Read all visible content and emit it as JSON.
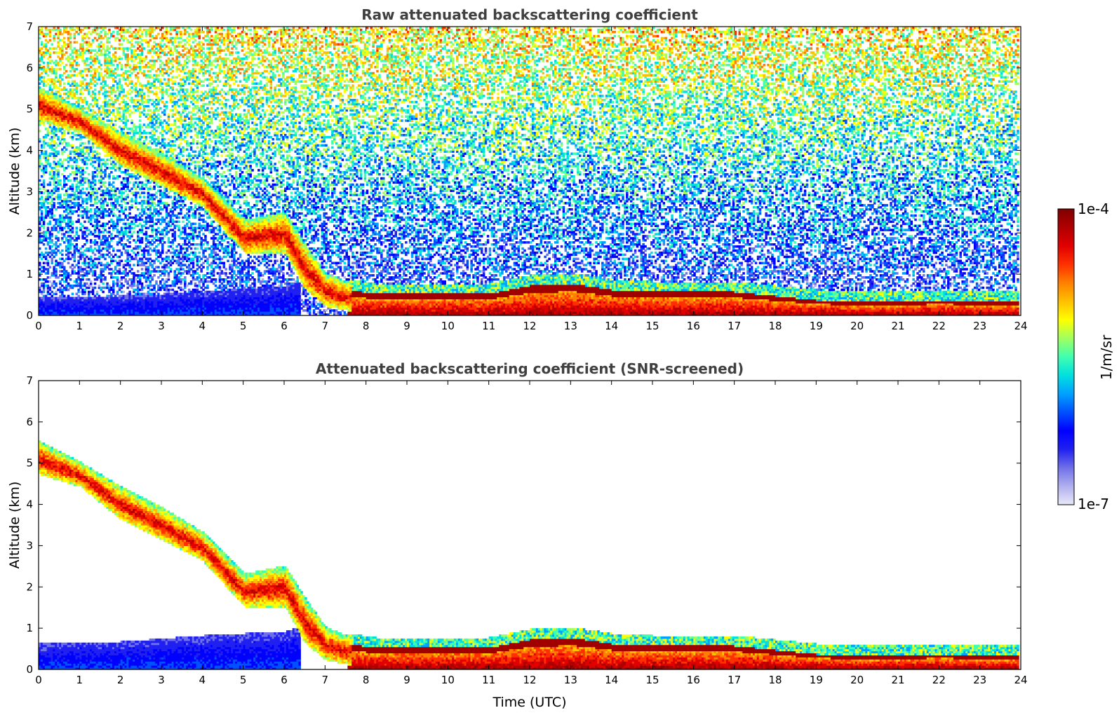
{
  "chart_data": [
    {
      "type": "heatmap",
      "title": "Raw attenuated backscattering coefficient",
      "xlabel": "",
      "ylabel": "Altitude (km)",
      "xlim": [
        0,
        24
      ],
      "ylim": [
        0,
        7
      ],
      "x_ticks": [
        "0",
        "1",
        "2",
        "3",
        "4",
        "5",
        "6",
        "7",
        "8",
        "9",
        "10",
        "11",
        "12",
        "13",
        "14",
        "15",
        "16",
        "17",
        "18",
        "19",
        "20",
        "21",
        "22",
        "23",
        "24"
      ],
      "y_ticks": [
        "0",
        "1",
        "2",
        "3",
        "4",
        "5",
        "6",
        "7"
      ],
      "noisy_background": true,
      "features": {
        "descending_layer_top_km": [
          [
            0,
            5.5
          ],
          [
            1,
            5.0
          ],
          [
            2,
            4.4
          ],
          [
            3,
            3.9
          ],
          [
            4,
            3.3
          ],
          [
            5,
            2.3
          ],
          [
            6,
            2.5
          ],
          [
            6.5,
            1.7
          ],
          [
            7,
            1.0
          ],
          [
            7.5,
            0.8
          ]
        ],
        "descending_layer_bottom_km": [
          [
            0,
            4.7
          ],
          [
            1,
            4.4
          ],
          [
            2,
            3.6
          ],
          [
            3,
            3.1
          ],
          [
            4,
            2.6
          ],
          [
            5,
            1.5
          ],
          [
            6,
            1.5
          ],
          [
            6.5,
            0.6
          ],
          [
            7,
            0.2
          ],
          [
            7.5,
            0.1
          ]
        ],
        "low_layer_top_km": [
          [
            0,
            0.4
          ],
          [
            2,
            0.45
          ],
          [
            4,
            0.55
          ],
          [
            6,
            0.7
          ],
          [
            6.3,
            0.8
          ]
        ],
        "boundary_layer_top_km": [
          [
            7.5,
            0.6
          ],
          [
            8.2,
            0.5
          ],
          [
            9,
            0.5
          ],
          [
            10,
            0.5
          ],
          [
            11,
            0.5
          ],
          [
            12,
            0.7
          ],
          [
            13,
            0.75
          ],
          [
            14,
            0.6
          ],
          [
            15,
            0.55
          ],
          [
            16,
            0.55
          ],
          [
            17,
            0.55
          ],
          [
            18,
            0.45
          ],
          [
            19,
            0.35
          ],
          [
            20,
            0.3
          ],
          [
            21,
            0.3
          ],
          [
            22,
            0.35
          ],
          [
            23,
            0.3
          ],
          [
            23.9,
            0.3
          ]
        ]
      }
    },
    {
      "type": "heatmap",
      "title": "Attenuated backscattering coefficient (SNR-screened)",
      "xlabel": "Time (UTC)",
      "ylabel": "Altitude (km)",
      "xlim": [
        0,
        24
      ],
      "ylim": [
        0,
        7
      ],
      "x_ticks": [
        "0",
        "1",
        "2",
        "3",
        "4",
        "5",
        "6",
        "7",
        "8",
        "9",
        "10",
        "11",
        "12",
        "13",
        "14",
        "15",
        "16",
        "17",
        "18",
        "19",
        "20",
        "21",
        "22",
        "23",
        "24"
      ],
      "y_ticks": [
        "0",
        "1",
        "2",
        "3",
        "4",
        "5",
        "6",
        "7"
      ],
      "noisy_background": false,
      "features": {
        "descending_layer_top_km": [
          [
            0,
            5.5
          ],
          [
            1,
            5.0
          ],
          [
            2,
            4.4
          ],
          [
            3,
            3.9
          ],
          [
            4,
            3.3
          ],
          [
            5,
            2.3
          ],
          [
            6,
            2.5
          ],
          [
            6.5,
            1.7
          ],
          [
            7,
            1.0
          ],
          [
            7.5,
            0.8
          ]
        ],
        "descending_layer_bottom_km": [
          [
            0,
            4.7
          ],
          [
            1,
            4.4
          ],
          [
            2,
            3.6
          ],
          [
            3,
            3.1
          ],
          [
            4,
            2.6
          ],
          [
            5,
            1.5
          ],
          [
            6,
            1.5
          ],
          [
            6.5,
            0.6
          ],
          [
            7,
            0.2
          ],
          [
            7.5,
            0.1
          ]
        ],
        "low_layer_top_km": [
          [
            0,
            0.6
          ],
          [
            2,
            0.65
          ],
          [
            4,
            0.8
          ],
          [
            6,
            0.9
          ],
          [
            6.3,
            1.0
          ]
        ],
        "boundary_layer_top_km": [
          [
            7.5,
            0.6
          ],
          [
            8.2,
            0.5
          ],
          [
            9,
            0.5
          ],
          [
            10,
            0.5
          ],
          [
            11,
            0.5
          ],
          [
            12,
            0.7
          ],
          [
            13,
            0.75
          ],
          [
            14,
            0.6
          ],
          [
            15,
            0.55
          ],
          [
            16,
            0.55
          ],
          [
            17,
            0.55
          ],
          [
            18,
            0.45
          ],
          [
            19,
            0.35
          ],
          [
            20,
            0.3
          ],
          [
            21,
            0.3
          ],
          [
            22,
            0.35
          ],
          [
            23,
            0.3
          ],
          [
            23.9,
            0.3
          ]
        ]
      }
    }
  ],
  "colorbar": {
    "label": "1/m/sr",
    "max_label": "1e-4",
    "min_label": "1e-7",
    "scale": "log",
    "range": [
      1e-07,
      0.0001
    ],
    "colors": [
      "#e8e8f8",
      "#b0b0ee",
      "#7070e8",
      "#2020f0",
      "#0000ff",
      "#0050ff",
      "#00a0ff",
      "#00e0e0",
      "#40ffb0",
      "#a0ff60",
      "#ffff00",
      "#ffc000",
      "#ff8000",
      "#ff3000",
      "#e00000",
      "#b00000",
      "#800000"
    ]
  }
}
